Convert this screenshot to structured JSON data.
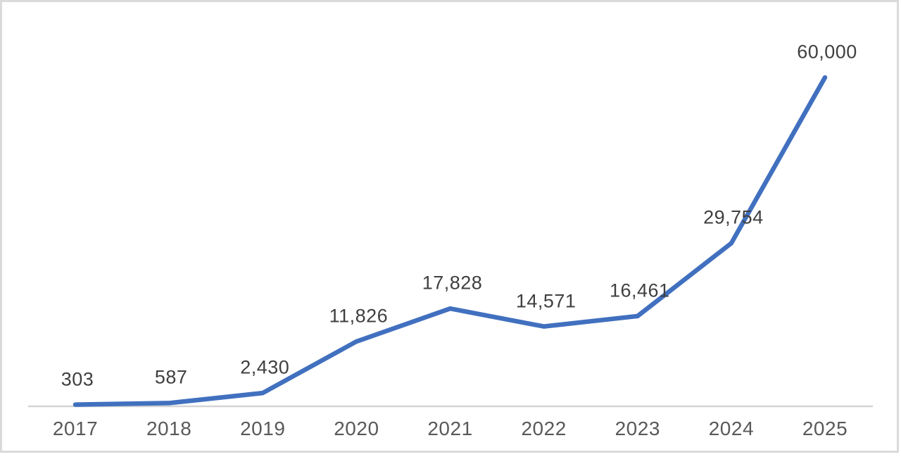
{
  "canvas": {
    "background": "#ffffff",
    "border_color": "#dadada"
  },
  "chart_data": {
    "type": "line",
    "title": "",
    "xlabel": "",
    "ylabel": "",
    "categories": [
      "2017",
      "2018",
      "2019",
      "2020",
      "2021",
      "2022",
      "2023",
      "2024",
      "2025"
    ],
    "values": [
      303,
      587,
      2430,
      11826,
      17828,
      14571,
      16461,
      29754,
      60000
    ],
    "data_labels": [
      "303",
      "587",
      "2,430",
      "11,826",
      "17,828",
      "14,571",
      "16,461",
      "29,754",
      "60,000"
    ],
    "ylim": [
      0,
      60000
    ],
    "grid": false,
    "legend": false,
    "line_color": "#4170bf",
    "axis_line_color": "#d4d4d4",
    "data_label_color": "#3f3f3f",
    "tick_label_color": "#595959"
  }
}
